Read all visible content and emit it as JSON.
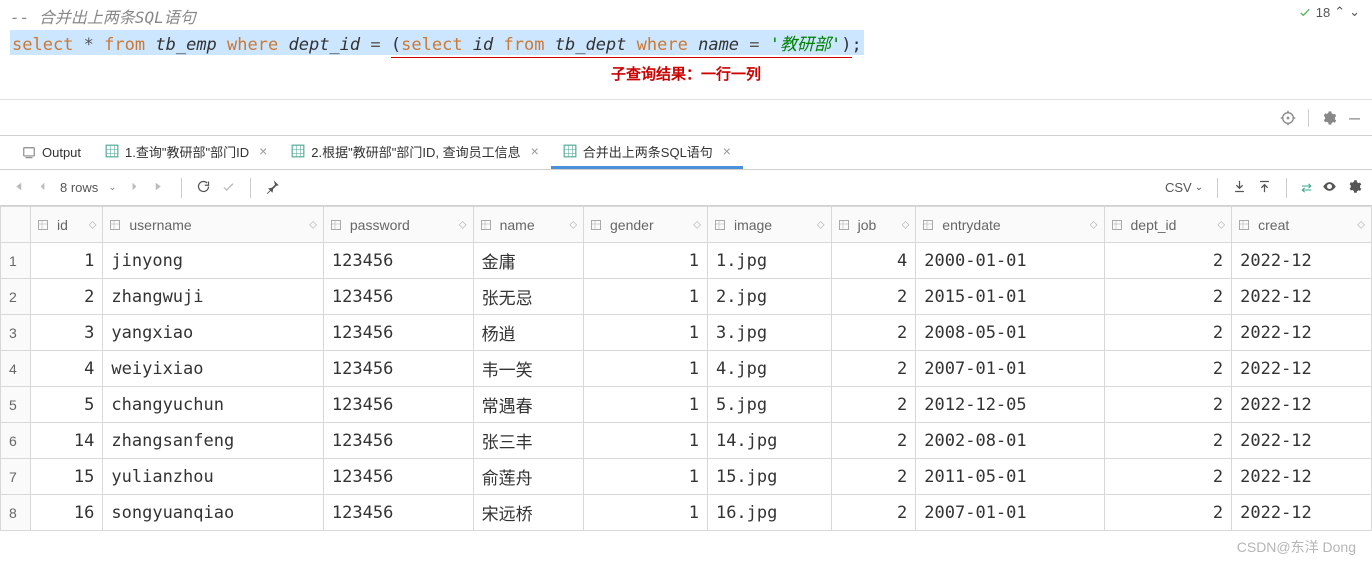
{
  "editor": {
    "comment": "-- 合并出上两条SQL语句",
    "sql": {
      "select": "select",
      "star": "*",
      "from1": "from",
      "tb_emp": "tb_emp",
      "where1": "where",
      "dept_id": "dept_id",
      "eq": "=",
      "from2": "from",
      "select2": "select",
      "id": "id",
      "tb_dept": "tb_dept",
      "where2": "where",
      "namecol": "name",
      "eq2": "=",
      "str": "'教研部'"
    },
    "annotation": "子查询结果：一行一列",
    "badge_count": "18"
  },
  "tabs": {
    "output": "Output",
    "t1": "1.查询\"教研部\"部门ID",
    "t2": "2.根据\"教研部\"部门ID, 查询员工信息",
    "t3": "合并出上两条SQL语句"
  },
  "grid_toolbar": {
    "row_count": "8 rows",
    "export_fmt": "CSV"
  },
  "columns": [
    "id",
    "username",
    "password",
    "name",
    "gender",
    "image",
    "job",
    "entrydate",
    "dept_id",
    "creat"
  ],
  "rows": [
    {
      "n": "1",
      "id": "1",
      "username": "jinyong",
      "password": "123456",
      "name": "金庸",
      "gender": "1",
      "image": "1.jpg",
      "job": "4",
      "entrydate": "2000-01-01",
      "dept_id": "2",
      "creat": "2022-12"
    },
    {
      "n": "2",
      "id": "2",
      "username": "zhangwuji",
      "password": "123456",
      "name": "张无忌",
      "gender": "1",
      "image": "2.jpg",
      "job": "2",
      "entrydate": "2015-01-01",
      "dept_id": "2",
      "creat": "2022-12"
    },
    {
      "n": "3",
      "id": "3",
      "username": "yangxiao",
      "password": "123456",
      "name": "杨逍",
      "gender": "1",
      "image": "3.jpg",
      "job": "2",
      "entrydate": "2008-05-01",
      "dept_id": "2",
      "creat": "2022-12"
    },
    {
      "n": "4",
      "id": "4",
      "username": "weiyixiao",
      "password": "123456",
      "name": "韦一笑",
      "gender": "1",
      "image": "4.jpg",
      "job": "2",
      "entrydate": "2007-01-01",
      "dept_id": "2",
      "creat": "2022-12"
    },
    {
      "n": "5",
      "id": "5",
      "username": "changyuchun",
      "password": "123456",
      "name": "常遇春",
      "gender": "1",
      "image": "5.jpg",
      "job": "2",
      "entrydate": "2012-12-05",
      "dept_id": "2",
      "creat": "2022-12"
    },
    {
      "n": "6",
      "id": "14",
      "username": "zhangsanfeng",
      "password": "123456",
      "name": "张三丰",
      "gender": "1",
      "image": "14.jpg",
      "job": "2",
      "entrydate": "2002-08-01",
      "dept_id": "2",
      "creat": "2022-12"
    },
    {
      "n": "7",
      "id": "15",
      "username": "yulianzhou",
      "password": "123456",
      "name": "俞莲舟",
      "gender": "1",
      "image": "15.jpg",
      "job": "2",
      "entrydate": "2011-05-01",
      "dept_id": "2",
      "creat": "2022-12"
    },
    {
      "n": "8",
      "id": "16",
      "username": "songyuanqiao",
      "password": "123456",
      "name": "宋远桥",
      "gender": "1",
      "image": "16.jpg",
      "job": "2",
      "entrydate": "2007-01-01",
      "dept_id": "2",
      "creat": "2022-12"
    }
  ],
  "watermark": "CSDN@东洋 Dong"
}
